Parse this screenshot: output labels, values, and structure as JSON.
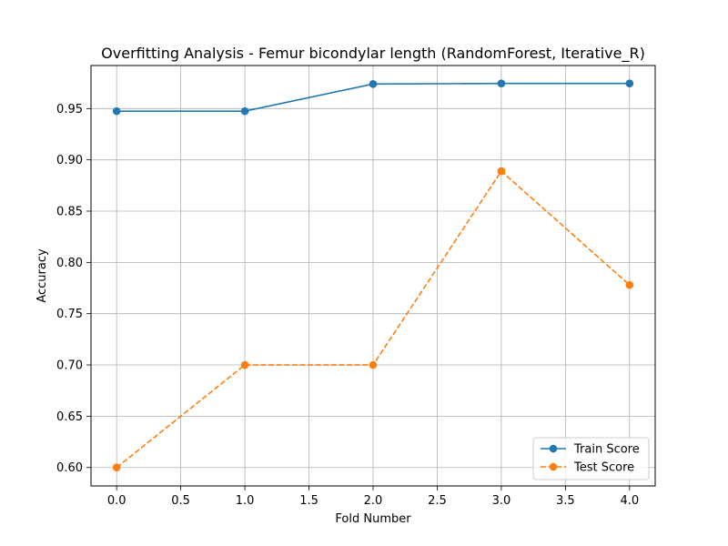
{
  "chart_data": {
    "type": "line",
    "title": "Overfitting Analysis - Femur bicondylar length (RandomForest, Iterative_R)",
    "xlabel": "Fold Number",
    "ylabel": "Accuracy",
    "x": [
      0,
      1,
      2,
      3,
      4
    ],
    "xlim": [
      -0.2,
      4.2
    ],
    "ylim": [
      0.582,
      0.992
    ],
    "xticks": [
      0.0,
      0.5,
      1.0,
      1.5,
      2.0,
      2.5,
      3.0,
      3.5,
      4.0
    ],
    "xtick_labels": [
      "0.0",
      "0.5",
      "1.0",
      "1.5",
      "2.0",
      "2.5",
      "3.0",
      "3.5",
      "4.0"
    ],
    "yticks": [
      0.6,
      0.65,
      0.7,
      0.75,
      0.8,
      0.85,
      0.9,
      0.95
    ],
    "ytick_labels": [
      "0.60",
      "0.65",
      "0.70",
      "0.75",
      "0.80",
      "0.85",
      "0.90",
      "0.95"
    ],
    "grid": true,
    "legend_position": "lower-right",
    "series": [
      {
        "name": "Train Score",
        "values": [
          0.9475,
          0.9475,
          0.974,
          0.9745,
          0.9745
        ],
        "color": "#1f77b4",
        "line_style": "solid",
        "marker": "circle"
      },
      {
        "name": "Test Score",
        "values": [
          0.6,
          0.7,
          0.7,
          0.889,
          0.778
        ],
        "color": "#ff7f0e",
        "line_style": "dashed",
        "marker": "circle"
      }
    ]
  }
}
